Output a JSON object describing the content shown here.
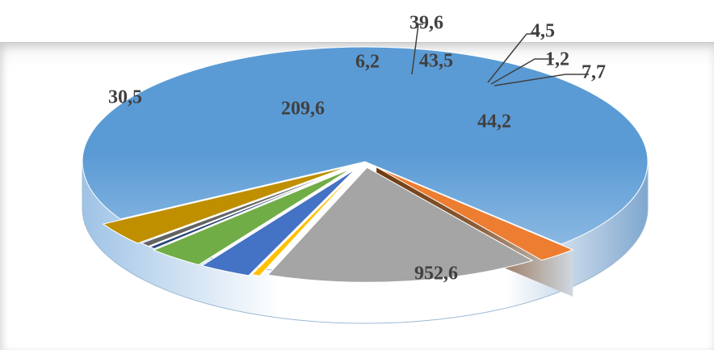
{
  "chart_data": {
    "type": "pie",
    "style": "3d-exploded",
    "series": [
      {
        "values": [
          952.6,
          30.5,
          209.6,
          6.2,
          39.6,
          43.5,
          4.5,
          1.2,
          7.7,
          44.2
        ],
        "labels": [
          "952,6",
          "30,5",
          "209,6",
          "6,2",
          "39,6",
          "43,5",
          "4,5",
          "1,2",
          "7,7",
          "44,2"
        ]
      }
    ],
    "colors": [
      "#5b9bd5",
      "#ed7d31",
      "#a5a5a5",
      "#ffc000",
      "#4472c4",
      "#70ad47",
      "#264478",
      "#9e480e",
      "#636363",
      "#bf8f00"
    ],
    "legend": "none",
    "grid": false
  }
}
